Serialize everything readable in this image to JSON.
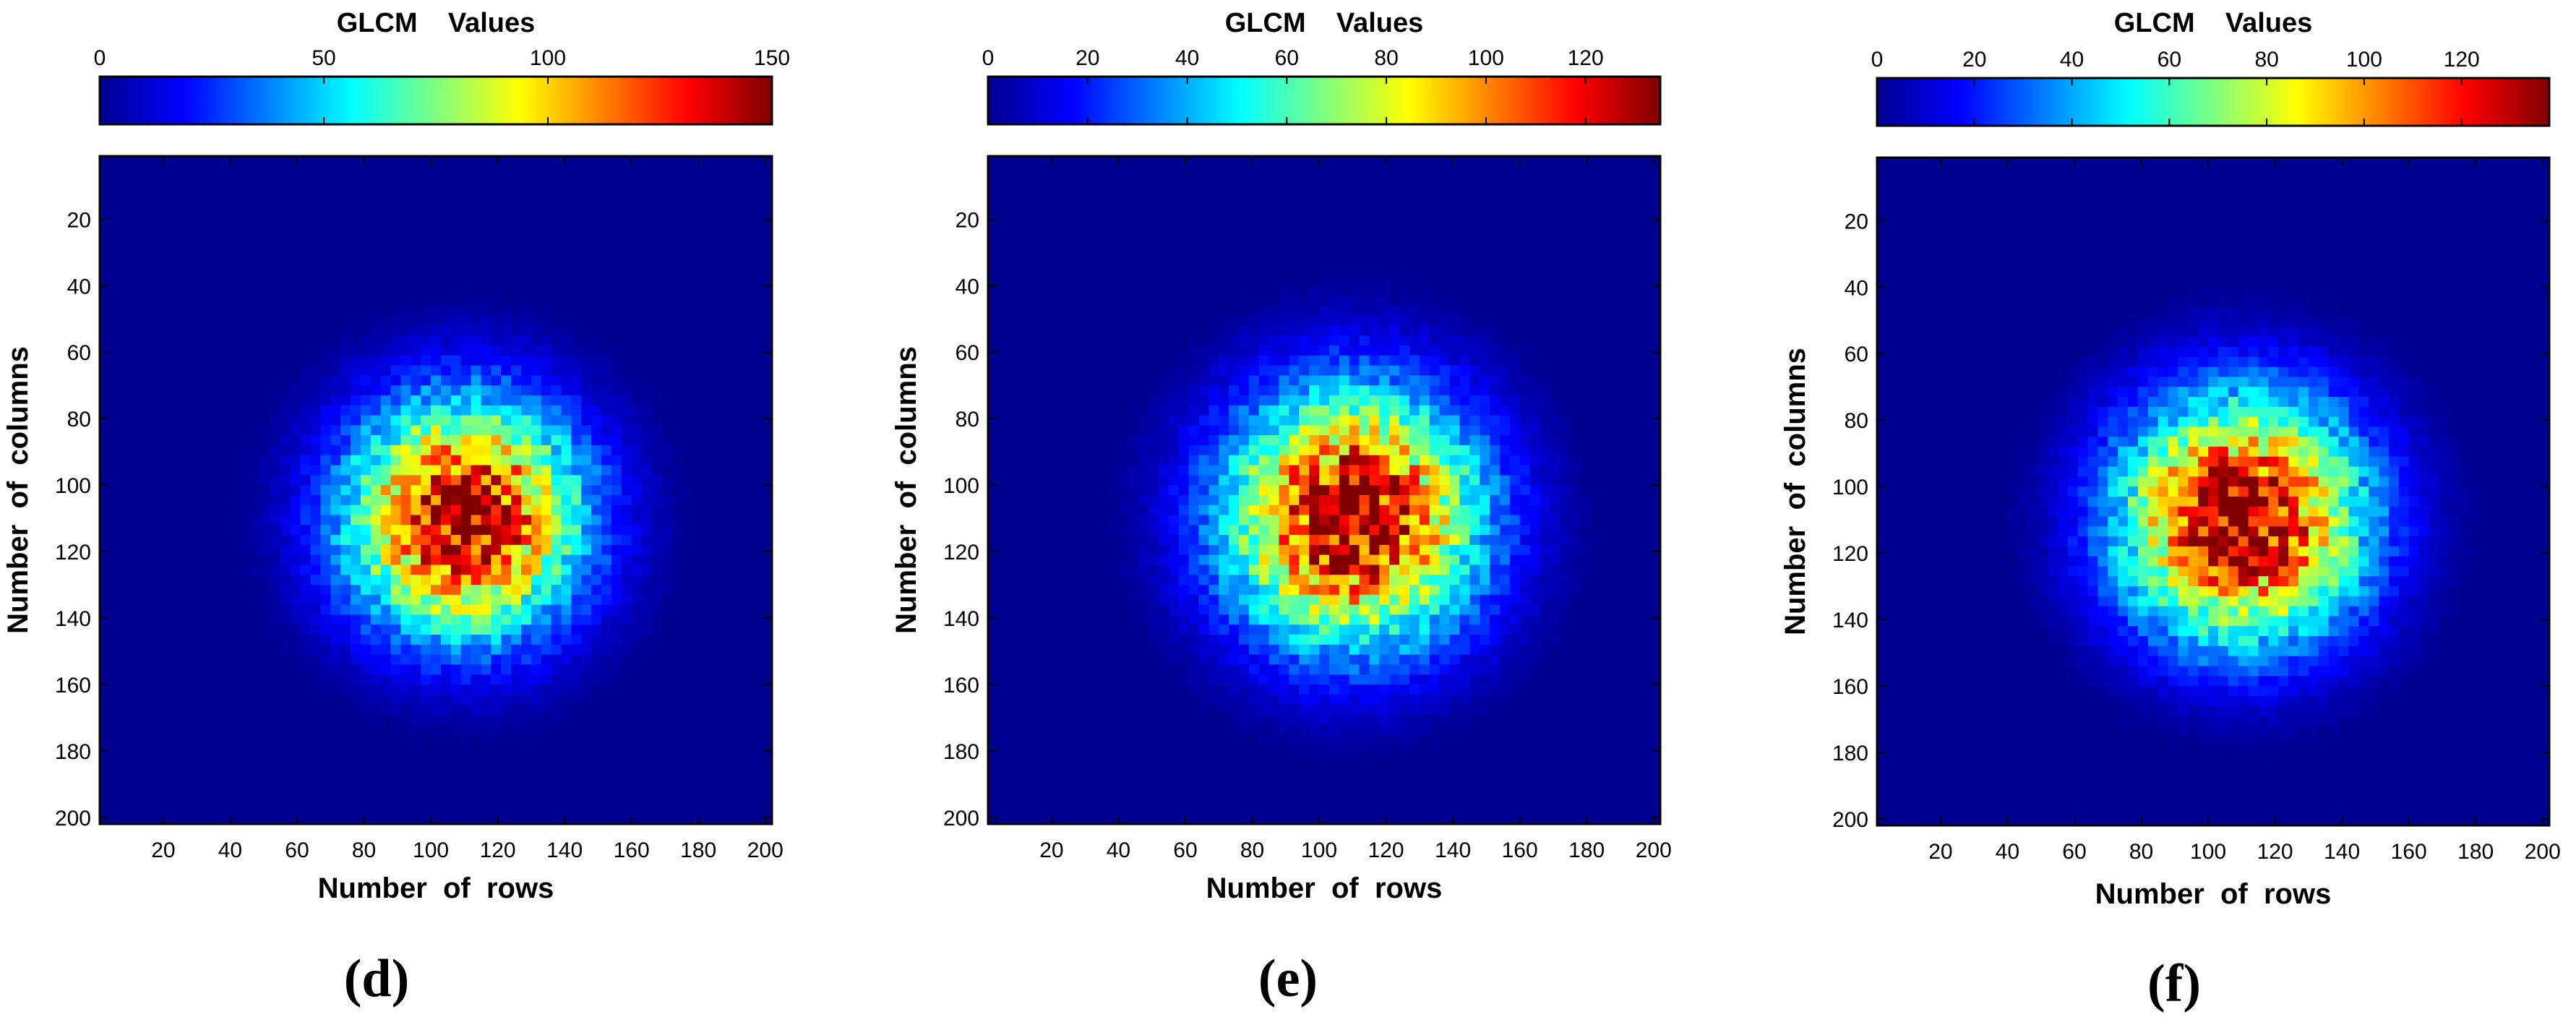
{
  "figure": {
    "panels": [
      "d",
      "e",
      "f"
    ]
  },
  "chart_data": [
    {
      "type": "heatmap",
      "panel_label": "(d)",
      "title": "GLCM    Values",
      "xlabel": "Number  of  rows",
      "ylabel": "Number  of  columns",
      "x_ticks": [
        "20",
        "40",
        "60",
        "80",
        "100",
        "120",
        "140",
        "160",
        "180",
        "200"
      ],
      "y_ticks": [
        "20",
        "40",
        "60",
        "80",
        "100",
        "120",
        "140",
        "160",
        "180",
        "200"
      ],
      "xlim": [
        1,
        202
      ],
      "ylim": [
        1,
        202
      ],
      "colorbar": {
        "min": 0,
        "max": 150,
        "ticks": [
          "0",
          "50",
          "100",
          "150"
        ]
      },
      "peak": {
        "row": 110,
        "col": 110,
        "value": 150
      },
      "spread": 24,
      "colormap": "jet"
    },
    {
      "type": "heatmap",
      "panel_label": "(e)",
      "title": "GLCM    Values",
      "xlabel": "Number  of  rows",
      "ylabel": "Number  of  columns",
      "x_ticks": [
        "20",
        "40",
        "60",
        "80",
        "100",
        "120",
        "140",
        "160",
        "180",
        "200"
      ],
      "y_ticks": [
        "20",
        "40",
        "60",
        "80",
        "100",
        "120",
        "140",
        "160",
        "180",
        "200"
      ],
      "xlim": [
        1,
        202
      ],
      "ylim": [
        1,
        202
      ],
      "colorbar": {
        "min": 0,
        "max": 135,
        "ticks": [
          "0",
          "20",
          "40",
          "60",
          "80",
          "100",
          "120"
        ]
      },
      "peak": {
        "row": 110,
        "col": 110,
        "value": 135
      },
      "spread": 26,
      "colormap": "jet"
    },
    {
      "type": "heatmap",
      "panel_label": "(f)",
      "title": "GLCM    Values",
      "xlabel": "Number  of  rows",
      "ylabel": "Number  of  columns",
      "x_ticks": [
        "20",
        "40",
        "60",
        "80",
        "100",
        "120",
        "140",
        "160",
        "180",
        "200"
      ],
      "y_ticks": [
        "20",
        "40",
        "60",
        "80",
        "100",
        "120",
        "140",
        "160",
        "180",
        "200"
      ],
      "xlim": [
        1,
        202
      ],
      "ylim": [
        1,
        202
      ],
      "colorbar": {
        "min": 0,
        "max": 138,
        "ticks": [
          "0",
          "20",
          "40",
          "60",
          "80",
          "100",
          "120"
        ]
      },
      "peak": {
        "row": 110,
        "col": 110,
        "value": 138
      },
      "spread": 25,
      "colormap": "jet"
    }
  ],
  "colors": {
    "background": "#ffffff",
    "heatmap_floor": "#00008f",
    "axis": "#000000"
  }
}
